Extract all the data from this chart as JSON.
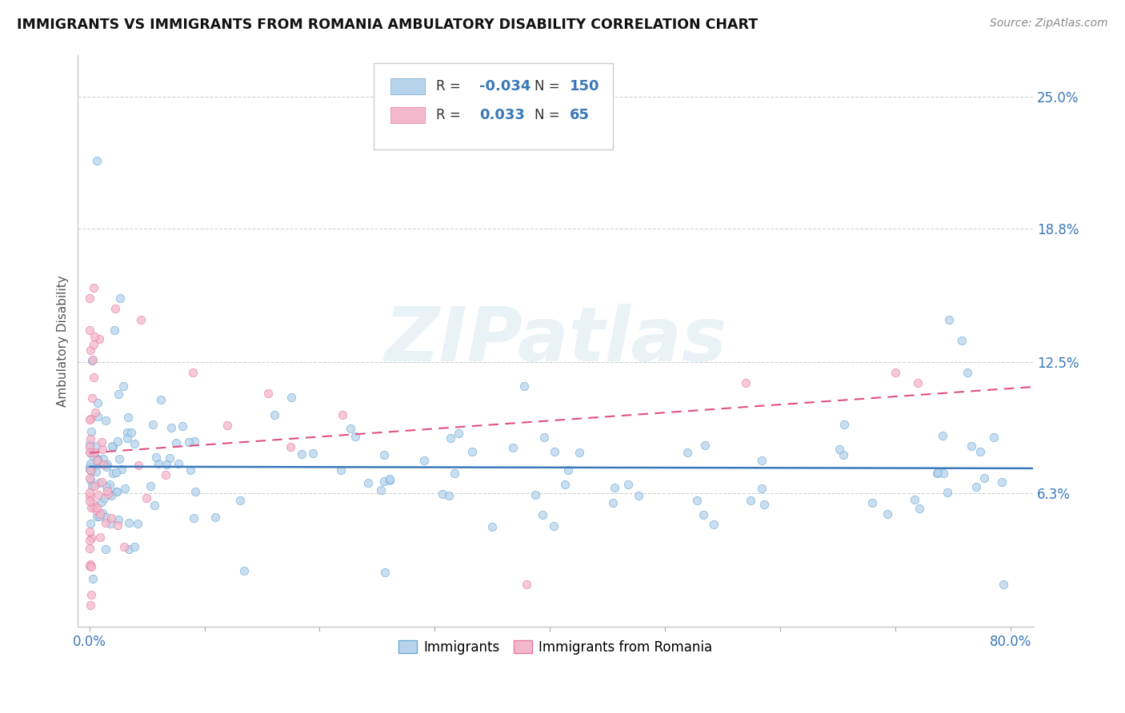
{
  "title": "IMMIGRANTS VS IMMIGRANTS FROM ROMANIA AMBULATORY DISABILITY CORRELATION CHART",
  "source": "Source: ZipAtlas.com",
  "ylabel": "Ambulatory Disability",
  "xlim": [
    -0.01,
    0.82
  ],
  "ylim": [
    0.0,
    0.27
  ],
  "yticks": [
    0.063,
    0.125,
    0.188,
    0.25
  ],
  "ytick_labels": [
    "6.3%",
    "12.5%",
    "18.8%",
    "25.0%"
  ],
  "xticks": [
    0.0,
    0.1,
    0.2,
    0.3,
    0.4,
    0.5,
    0.6,
    0.7,
    0.8
  ],
  "xtick_labels": [
    "0.0%",
    "",
    "",
    "",
    "",
    "",
    "",
    "",
    "80.0%"
  ],
  "blue_R": -0.034,
  "blue_N": 150,
  "pink_R": 0.033,
  "pink_N": 65,
  "blue_color": "#b8d4ec",
  "blue_edge": "#6aaad4",
  "pink_color": "#f4b8cc",
  "pink_edge": "#e87aa0",
  "blue_line_color": "#3a78b8",
  "pink_line_color": "#e05080",
  "blue_line_intercept": 0.0755,
  "blue_line_slope": -0.001,
  "pink_line_intercept": 0.082,
  "pink_line_slope": 0.038,
  "watermark_text": "ZIPatlas",
  "background_color": "#ffffff",
  "grid_color": "#cccccc",
  "legend_R1": "R =",
  "legend_V1": "-0.034",
  "legend_N1": "N =",
  "legend_NV1": "150",
  "legend_R2": "R =",
  "legend_V2": "0.033",
  "legend_N2": "N =",
  "legend_NV2": "65",
  "legend_text_color": "#3a78b8",
  "bottom_legend1": "Immigrants",
  "bottom_legend2": "Immigrants from Romania"
}
